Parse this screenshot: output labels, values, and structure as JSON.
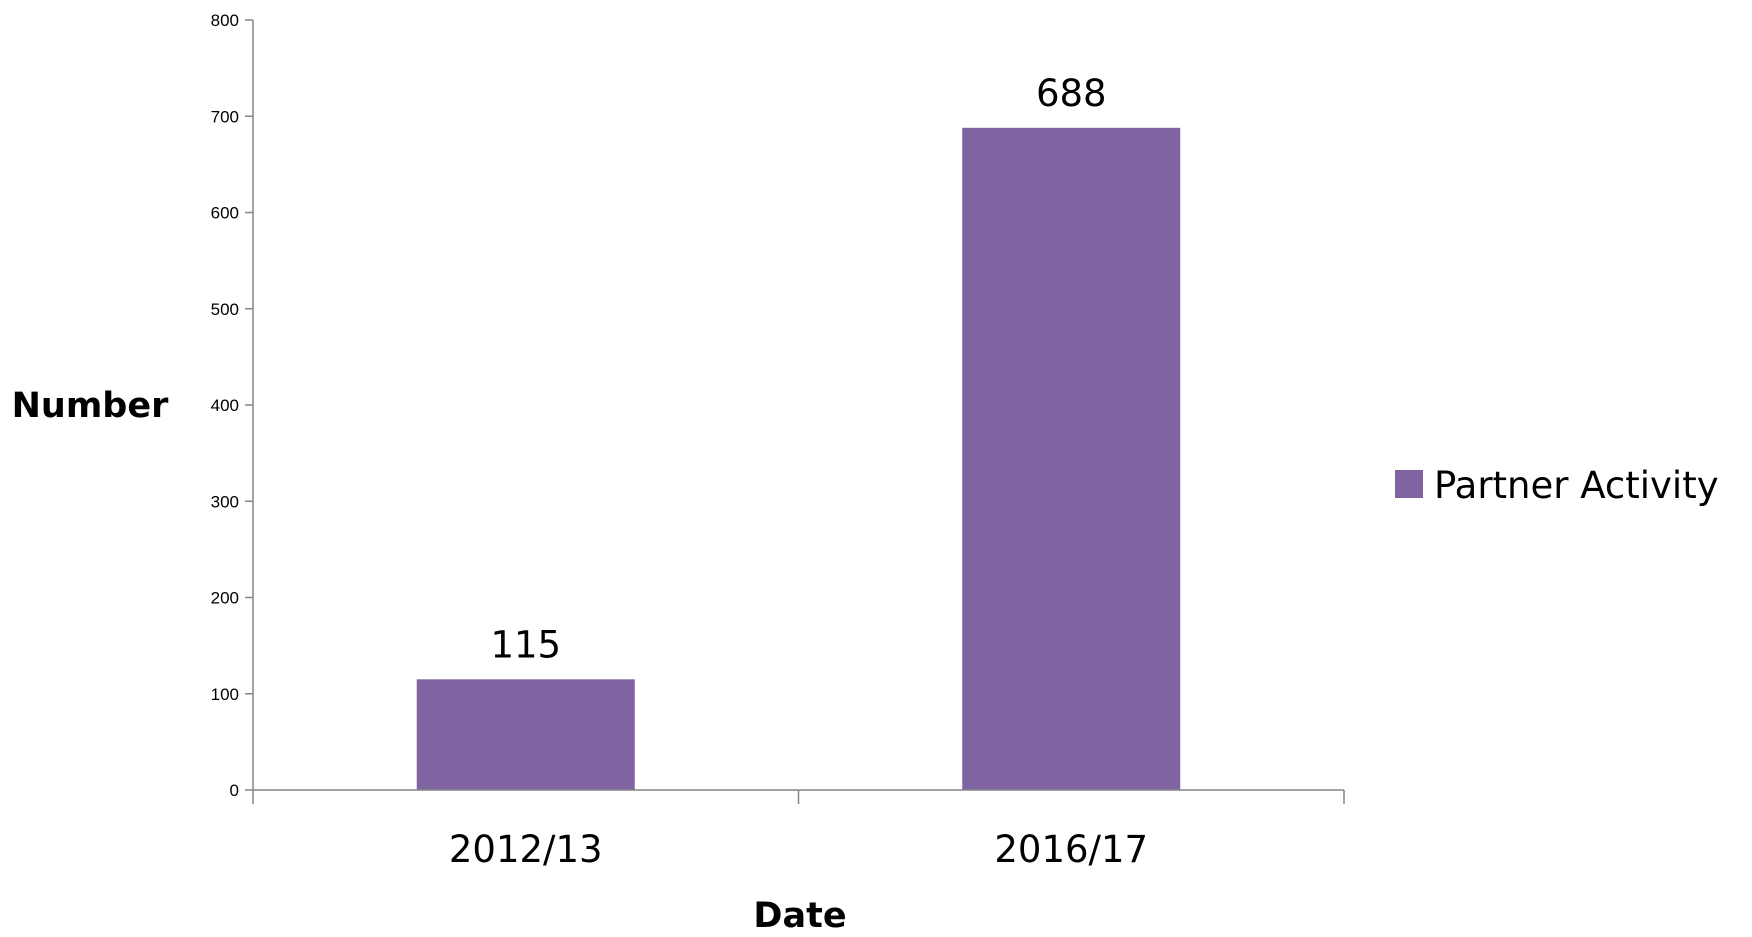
{
  "chart_data": {
    "type": "bar",
    "title": "",
    "xlabel": "Date",
    "ylabel": "Number",
    "categories": [
      "2012/13",
      "2016/17"
    ],
    "series": [
      {
        "name": "Partner Activity",
        "values": [
          115,
          688
        ],
        "color": "#8064A2"
      }
    ],
    "data_labels": [
      "115",
      "688"
    ],
    "ylim": [
      0,
      800
    ],
    "yticks": [
      0,
      100,
      200,
      300,
      400,
      500,
      600,
      700,
      800
    ],
    "ytick_labels": [
      "0",
      "100",
      "200",
      "300",
      "400",
      "500",
      "600",
      "700",
      "800"
    ],
    "grid": false,
    "legend_position": "right"
  },
  "colors": {
    "axis": "#868686",
    "bar": "#8064A2"
  }
}
